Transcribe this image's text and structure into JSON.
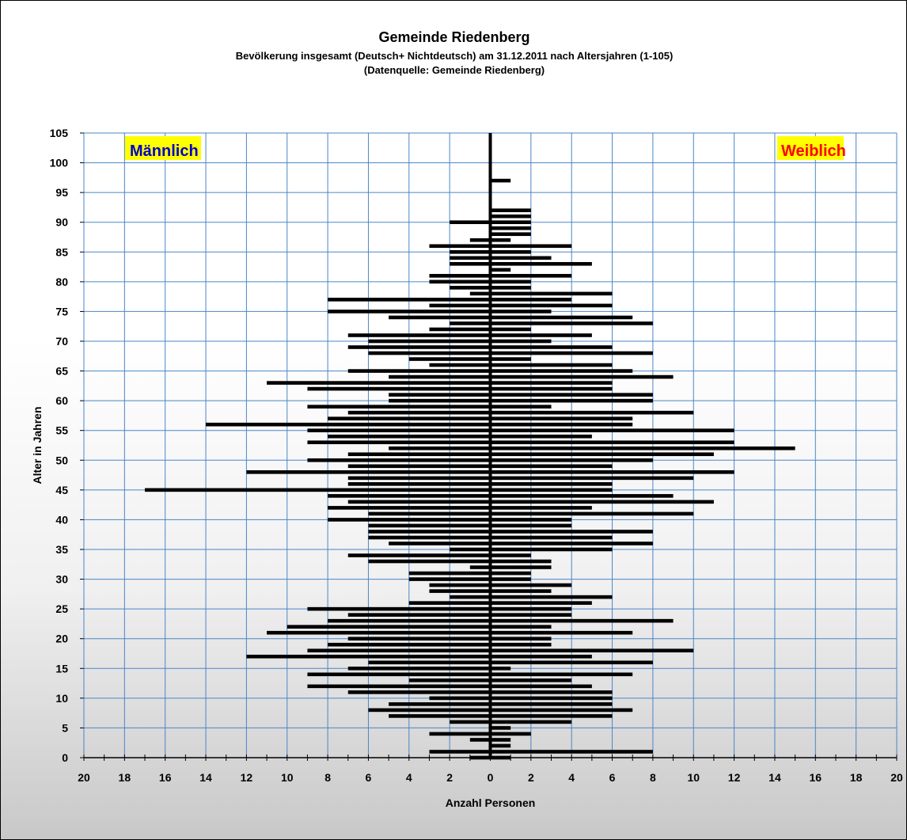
{
  "chart_data": {
    "type": "bar",
    "orientation": "horizontal",
    "title": "Gemeinde Riedenberg",
    "subtitle": "Bevölkerung  insgesamt (Deutsch+ Nichtdeutsch) am 31.12.2011 nach Altersjahren (1-105)",
    "source": "(Datenquelle: Gemeinde Riedenberg)",
    "xlabel": "Anzahl Personen",
    "ylabel": "Alter in Jahren",
    "xlim": [
      -20,
      20
    ],
    "ylim": [
      0,
      105
    ],
    "x_ticks": [
      "20",
      "18",
      "16",
      "14",
      "12",
      "10",
      "8",
      "6",
      "4",
      "2",
      "0",
      "2",
      "4",
      "6",
      "8",
      "10",
      "12",
      "14",
      "16",
      "18",
      "20"
    ],
    "y_ticks": [
      "0",
      "5",
      "10",
      "15",
      "20",
      "25",
      "30",
      "35",
      "40",
      "45",
      "50",
      "55",
      "60",
      "65",
      "70",
      "75",
      "80",
      "85",
      "90",
      "95",
      "100",
      "105"
    ],
    "grid": true,
    "colors": {
      "bars": "#000000",
      "grid": "#4a86c8",
      "male_label": "#0000cc",
      "female_label": "#ff0000",
      "label_bg": "#ffff00"
    },
    "series": [
      {
        "name": "Männlich",
        "ages": [
          0,
          1,
          2,
          3,
          4,
          5,
          6,
          7,
          8,
          9,
          10,
          11,
          12,
          13,
          14,
          15,
          16,
          17,
          18,
          19,
          20,
          21,
          22,
          23,
          24,
          25,
          26,
          27,
          28,
          29,
          30,
          31,
          32,
          33,
          34,
          35,
          36,
          37,
          38,
          39,
          40,
          41,
          42,
          43,
          44,
          45,
          46,
          47,
          48,
          49,
          50,
          51,
          52,
          53,
          54,
          55,
          56,
          57,
          58,
          59,
          60,
          61,
          62,
          63,
          64,
          65,
          66,
          67,
          68,
          69,
          70,
          71,
          72,
          73,
          74,
          75,
          76,
          77,
          78,
          79,
          80,
          81,
          82,
          83,
          84,
          85,
          86,
          87,
          88,
          89,
          90,
          91,
          92,
          93,
          94,
          95,
          96,
          97,
          98,
          99,
          100,
          101,
          102,
          103,
          104,
          105
        ],
        "values": [
          1,
          3,
          0,
          1,
          3,
          0,
          2,
          5,
          6,
          5,
          3,
          7,
          9,
          4,
          9,
          7,
          6,
          12,
          9,
          8,
          7,
          11,
          10,
          8,
          7,
          9,
          4,
          2,
          3,
          3,
          4,
          4,
          1,
          6,
          7,
          2,
          5,
          6,
          6,
          6,
          8,
          6,
          8,
          7,
          8,
          17,
          7,
          7,
          12,
          7,
          9,
          7,
          5,
          9,
          8,
          9,
          14,
          8,
          7,
          9,
          5,
          5,
          9,
          11,
          5,
          7,
          3,
          4,
          6,
          7,
          6,
          7,
          3,
          2,
          5,
          8,
          3,
          8,
          1,
          2,
          3,
          3,
          0,
          2,
          2,
          2,
          3,
          1,
          0,
          0,
          2,
          0,
          0,
          0,
          0,
          0,
          0,
          0,
          0,
          0,
          0,
          0,
          0,
          0,
          0,
          0
        ]
      },
      {
        "name": "Weiblich",
        "ages": [
          0,
          1,
          2,
          3,
          4,
          5,
          6,
          7,
          8,
          9,
          10,
          11,
          12,
          13,
          14,
          15,
          16,
          17,
          18,
          19,
          20,
          21,
          22,
          23,
          24,
          25,
          26,
          27,
          28,
          29,
          30,
          31,
          32,
          33,
          34,
          35,
          36,
          37,
          38,
          39,
          40,
          41,
          42,
          43,
          44,
          45,
          46,
          47,
          48,
          49,
          50,
          51,
          52,
          53,
          54,
          55,
          56,
          57,
          58,
          59,
          60,
          61,
          62,
          63,
          64,
          65,
          66,
          67,
          68,
          69,
          70,
          71,
          72,
          73,
          74,
          75,
          76,
          77,
          78,
          79,
          80,
          81,
          82,
          83,
          84,
          85,
          86,
          87,
          88,
          89,
          90,
          91,
          92,
          93,
          94,
          95,
          96,
          97,
          98,
          99,
          100,
          101,
          102,
          103,
          104,
          105
        ],
        "values": [
          1,
          8,
          1,
          1,
          2,
          1,
          4,
          6,
          7,
          6,
          6,
          6,
          5,
          4,
          7,
          1,
          8,
          5,
          10,
          3,
          3,
          7,
          3,
          9,
          4,
          4,
          5,
          6,
          3,
          4,
          2,
          2,
          3,
          3,
          2,
          6,
          8,
          6,
          8,
          4,
          4,
          10,
          5,
          11,
          9,
          6,
          6,
          10,
          12,
          6,
          8,
          11,
          15,
          12,
          5,
          12,
          7,
          7,
          10,
          3,
          8,
          8,
          6,
          6,
          9,
          7,
          6,
          2,
          8,
          6,
          3,
          5,
          2,
          8,
          7,
          3,
          6,
          4,
          6,
          2,
          2,
          4,
          1,
          5,
          3,
          2,
          4,
          1,
          2,
          2,
          2,
          2,
          2,
          0,
          0,
          0,
          0,
          1,
          0,
          0,
          0,
          0,
          0,
          0,
          0,
          0
        ]
      }
    ]
  }
}
